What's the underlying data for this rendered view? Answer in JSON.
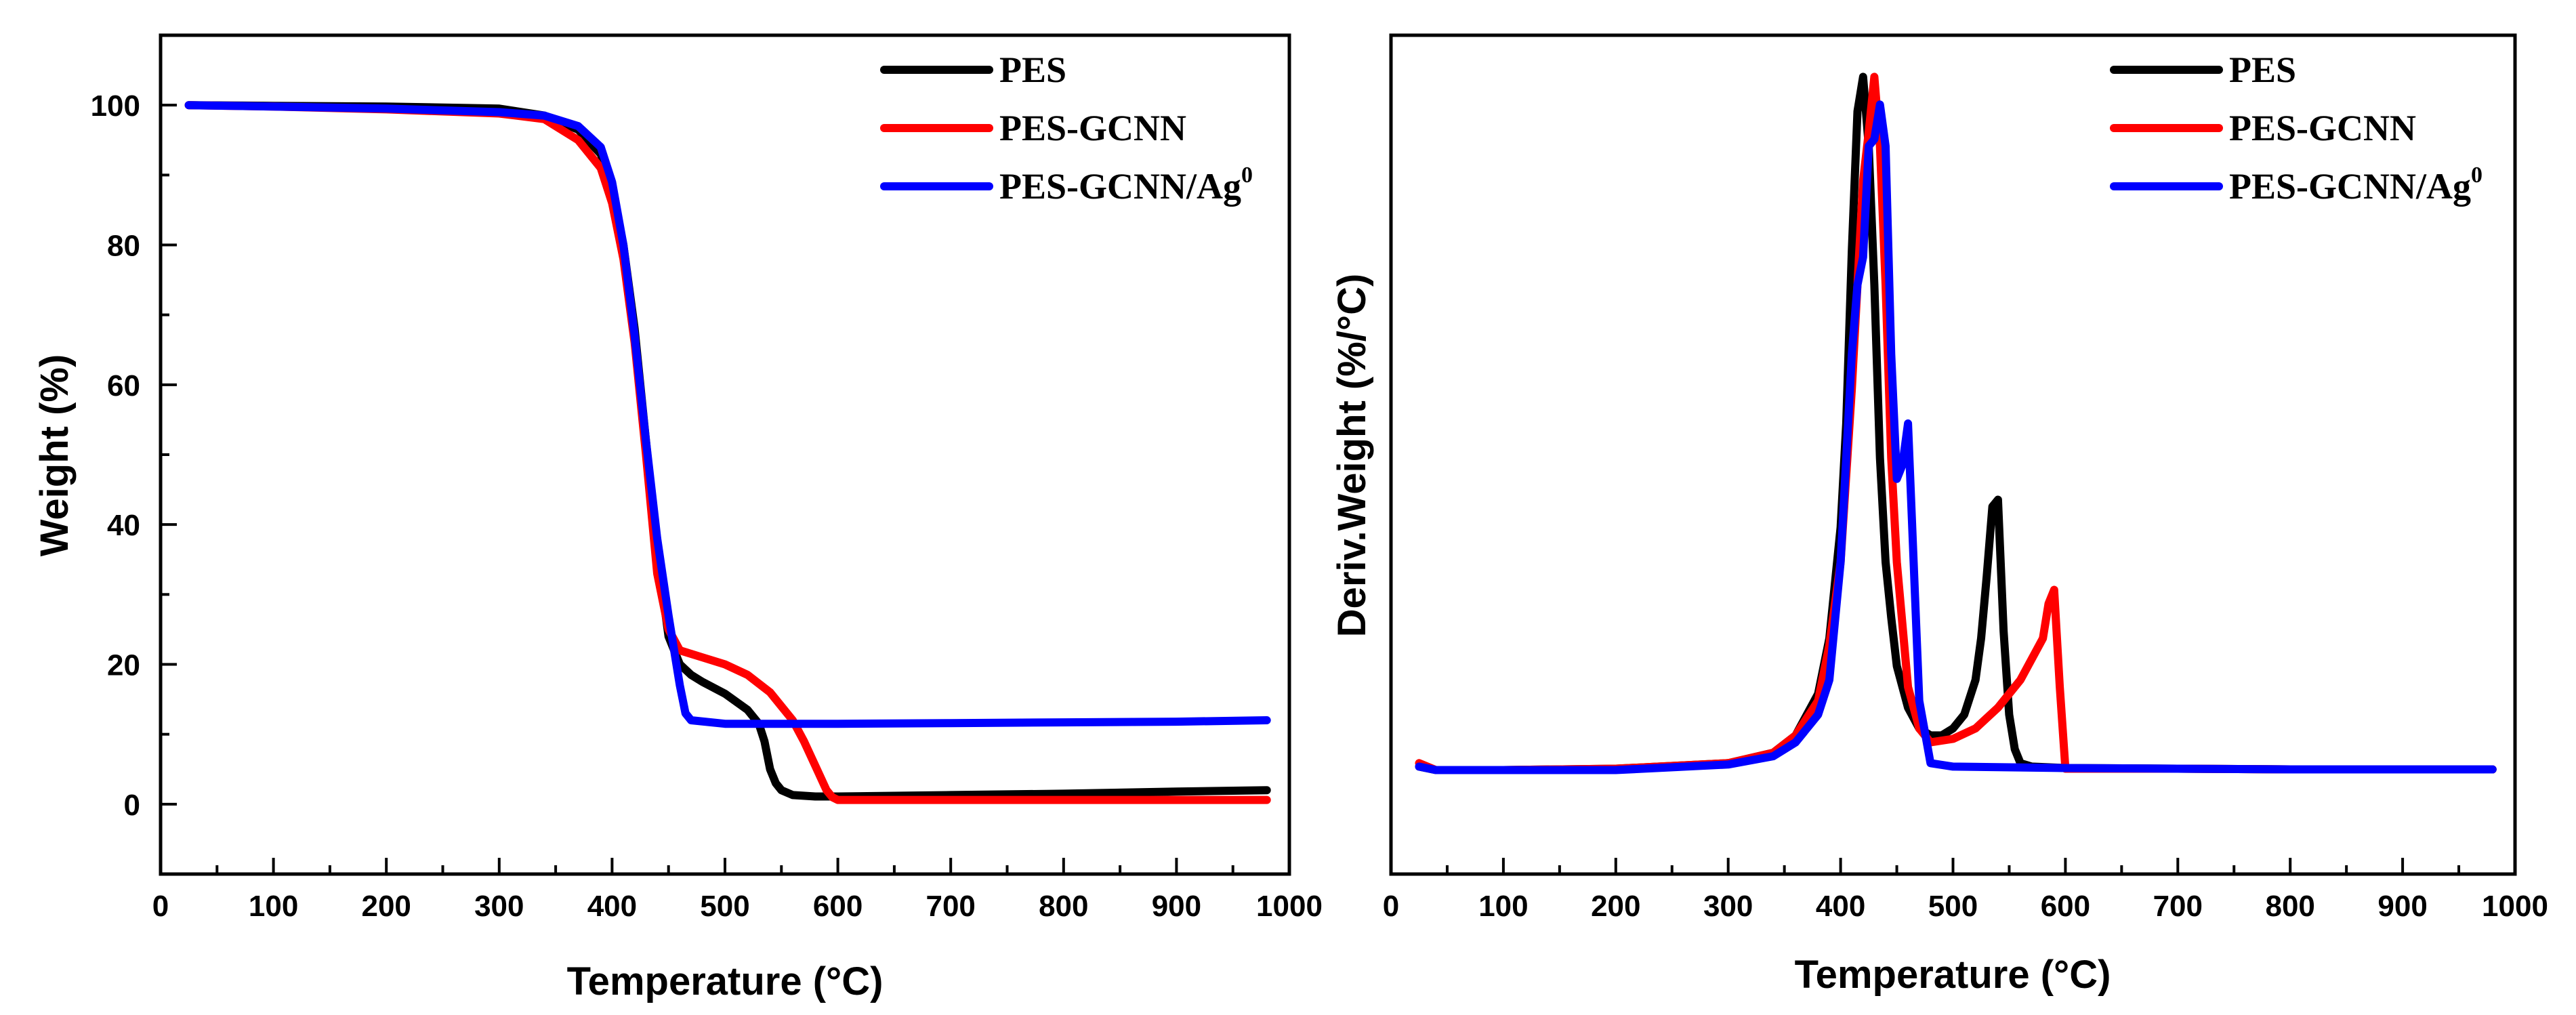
{
  "chart_data": [
    {
      "type": "line",
      "title": "",
      "xlabel": "Temperature (°C)",
      "ylabel": "Weight (%)",
      "xlim": [
        0,
        1000
      ],
      "ylim": [
        -10,
        110
      ],
      "xticks": [
        0,
        100,
        200,
        300,
        400,
        500,
        600,
        700,
        800,
        900,
        1000
      ],
      "yticks": [
        0,
        20,
        40,
        60,
        80,
        100
      ],
      "legend_position": "top-right",
      "series": [
        {
          "name": "PES",
          "sup": "",
          "color": "#000000",
          "x": [
            25,
            100,
            200,
            300,
            340,
            370,
            390,
            400,
            410,
            420,
            430,
            440,
            450,
            460,
            470,
            480,
            500,
            520,
            530,
            535,
            540,
            545,
            550,
            560,
            580,
            600,
            700,
            800,
            900,
            980
          ],
          "y": [
            100,
            99.9,
            99.8,
            99.5,
            98.5,
            96.5,
            93,
            88,
            80,
            68,
            52,
            36,
            24,
            20,
            18.5,
            17.5,
            15.8,
            13.5,
            11.5,
            9,
            5,
            3,
            2,
            1.3,
            1.1,
            1.1,
            1.3,
            1.5,
            1.8,
            2
          ]
        },
        {
          "name": "PES-GCNN",
          "sup": "",
          "color": "#ff0000",
          "x": [
            25,
            100,
            200,
            300,
            340,
            370,
            390,
            400,
            410,
            420,
            430,
            440,
            450,
            460,
            470,
            480,
            500,
            520,
            540,
            560,
            570,
            580,
            590,
            595,
            600,
            700,
            800,
            900,
            980
          ],
          "y": [
            100,
            99.8,
            99.4,
            98.8,
            98,
            95,
            91,
            86,
            78,
            66,
            50,
            33,
            25,
            22,
            21.5,
            21,
            20,
            18.5,
            16,
            12,
            9,
            5.5,
            2,
            1,
            0.6,
            0.6,
            0.6,
            0.6,
            0.6
          ]
        },
        {
          "name": "PES-GCNN/Ag",
          "sup": "0",
          "color": "#0000ff",
          "x": [
            25,
            100,
            200,
            300,
            340,
            370,
            390,
            400,
            410,
            420,
            430,
            440,
            450,
            455,
            460,
            465,
            470,
            500,
            600,
            700,
            800,
            900,
            980
          ],
          "y": [
            100,
            99.8,
            99.5,
            99,
            98.5,
            97,
            94,
            89,
            80,
            67,
            52,
            38,
            27,
            22,
            17,
            13,
            12,
            11.5,
            11.5,
            11.6,
            11.7,
            11.8,
            12
          ]
        }
      ]
    },
    {
      "type": "line",
      "title": "",
      "xlabel": "Temperature (°C)",
      "ylabel": "Deriv.Weight (%/°C)",
      "xlim": [
        0,
        1000
      ],
      "ylim": [
        -0.15,
        1.06
      ],
      "xticks": [
        0,
        100,
        200,
        300,
        400,
        500,
        600,
        700,
        800,
        900,
        1000
      ],
      "yticks": [],
      "legend_position": "top-right",
      "series": [
        {
          "name": "PES",
          "sup": "",
          "color": "#000000",
          "x": [
            25,
            40,
            100,
            200,
            300,
            340,
            360,
            380,
            390,
            400,
            405,
            410,
            415,
            420,
            425,
            430,
            435,
            440,
            445,
            450,
            460,
            470,
            480,
            490,
            500,
            510,
            520,
            525,
            530,
            535,
            540,
            545,
            550,
            555,
            560,
            570,
            600,
            700,
            800,
            900,
            980
          ],
          "y": [
            0.005,
            0,
            0,
            0.002,
            0.01,
            0.025,
            0.05,
            0.11,
            0.19,
            0.35,
            0.5,
            0.75,
            0.95,
            1.0,
            0.9,
            0.7,
            0.45,
            0.3,
            0.22,
            0.15,
            0.09,
            0.06,
            0.05,
            0.05,
            0.06,
            0.08,
            0.13,
            0.19,
            0.28,
            0.38,
            0.39,
            0.2,
            0.08,
            0.03,
            0.01,
            0.005,
            0.003,
            0.002,
            0.001,
            0.001,
            0.001
          ]
        },
        {
          "name": "PES-GCNN",
          "sup": "",
          "color": "#ff0000",
          "x": [
            25,
            40,
            100,
            200,
            300,
            340,
            360,
            380,
            390,
            400,
            410,
            420,
            425,
            430,
            435,
            440,
            445,
            450,
            460,
            470,
            480,
            500,
            520,
            540,
            560,
            580,
            585,
            590,
            595,
            600,
            610,
            700,
            800,
            900,
            980
          ],
          "y": [
            0.01,
            0,
            0,
            0.002,
            0.01,
            0.025,
            0.05,
            0.1,
            0.18,
            0.3,
            0.55,
            0.85,
            0.92,
            1.0,
            0.9,
            0.7,
            0.45,
            0.3,
            0.12,
            0.06,
            0.04,
            0.045,
            0.06,
            0.09,
            0.13,
            0.19,
            0.24,
            0.26,
            0.12,
            0.002,
            0.002,
            0.002,
            0.001,
            0.001,
            0.001
          ]
        },
        {
          "name": "PES-GCNN/Ag",
          "sup": "0",
          "color": "#0000ff",
          "x": [
            25,
            40,
            100,
            200,
            300,
            340,
            360,
            380,
            390,
            400,
            410,
            415,
            420,
            425,
            430,
            435,
            440,
            445,
            450,
            455,
            460,
            465,
            470,
            480,
            500,
            600,
            700,
            800,
            900,
            980
          ],
          "y": [
            0.005,
            0,
            0,
            0,
            0.008,
            0.02,
            0.04,
            0.08,
            0.13,
            0.3,
            0.6,
            0.7,
            0.74,
            0.9,
            0.91,
            0.96,
            0.9,
            0.6,
            0.42,
            0.44,
            0.5,
            0.3,
            0.1,
            0.01,
            0.005,
            0.003,
            0.002,
            0.001,
            0.001,
            0.001
          ]
        }
      ]
    }
  ]
}
